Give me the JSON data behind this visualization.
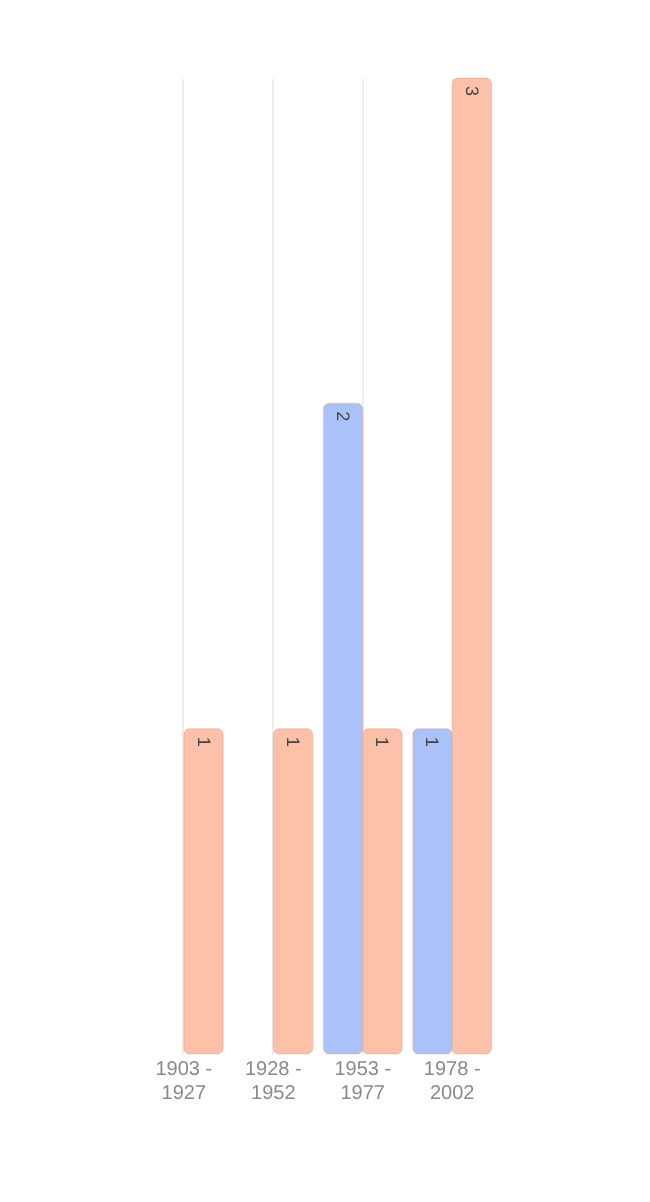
{
  "chart_data": {
    "type": "bar",
    "categories": [
      "1903 - 1927",
      "1928 - 1952",
      "1953 - 1977",
      "1978 - 2002"
    ],
    "series": [
      {
        "color": "#aac1f9",
        "values": [
          null,
          null,
          2,
          1
        ]
      },
      {
        "color": "#fdc0a8",
        "values": [
          1,
          1,
          1,
          3
        ]
      }
    ],
    "data_labels": true,
    "grid": "x",
    "legend": false
  }
}
